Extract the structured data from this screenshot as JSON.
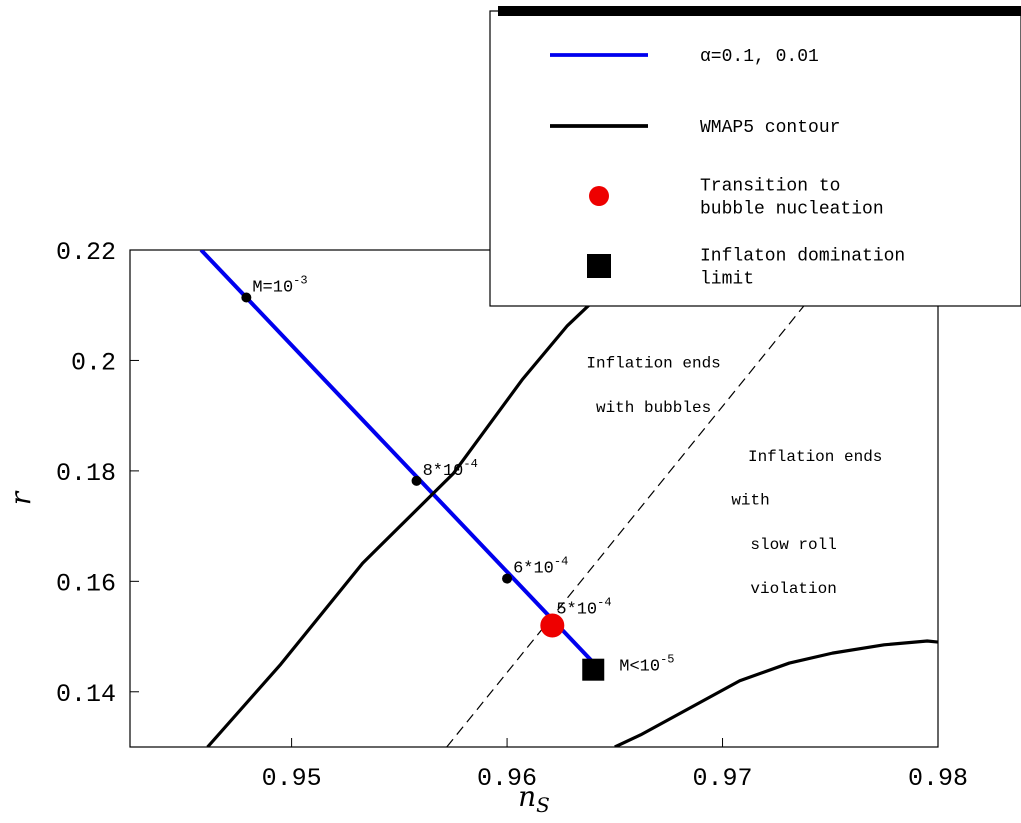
{
  "chart_data": {
    "type": "line",
    "xlabel_main": "n",
    "xlabel_sub": "S",
    "ylabel": "r",
    "xlim": [
      0.9425,
      0.98
    ],
    "ylim": [
      0.13,
      0.22
    ],
    "xticks": [
      "0.95",
      "0.96",
      "0.97",
      "0.98"
    ],
    "xtick_values": [
      0.95,
      0.96,
      0.97,
      0.98
    ],
    "yticks": [
      "0.14",
      "0.16",
      "0.18",
      "0.2",
      "0.22"
    ],
    "ytick_values": [
      0.14,
      0.16,
      0.18,
      0.2,
      0.22
    ],
    "series": [
      {
        "name": "α=0.1, 0.01",
        "color": "#0000ee",
        "x": [
          0.9458,
          0.964
        ],
        "y": [
          0.22,
          0.1453
        ]
      },
      {
        "name": "WMAP5 contour",
        "color": "#000000",
        "x": [
          0.9461,
          0.9495,
          0.9533,
          0.9575,
          0.9607,
          0.9628,
          0.9638
        ],
        "y": [
          0.13,
          0.145,
          0.1633,
          0.1795,
          0.1965,
          0.2063,
          0.21
        ]
      },
      {
        "name": "WMAP5 contour lower",
        "color": "#000000",
        "x": [
          0.965,
          0.9662,
          0.9708,
          0.9731,
          0.9751,
          0.9775,
          0.9795,
          0.98
        ],
        "y": [
          0.13,
          0.1322,
          0.142,
          0.1452,
          0.147,
          0.1485,
          0.1492,
          0.149
        ]
      },
      {
        "name": "boundary",
        "color": "#000000",
        "dashed": true,
        "x": [
          0.9572,
          0.9738
        ],
        "y": [
          0.13,
          0.21
        ]
      }
    ],
    "points": [
      {
        "x": 0.9479,
        "y": 0.2114,
        "label": "M=10",
        "exp": "-3",
        "kind": "small"
      },
      {
        "x": 0.9558,
        "y": 0.1782,
        "label": "8*10",
        "exp": "-4",
        "kind": "small"
      },
      {
        "x": 0.96,
        "y": 0.1605,
        "label": "6*10",
        "exp": "-4",
        "kind": "small"
      },
      {
        "x": 0.9621,
        "y": 0.152,
        "label": "5*10",
        "exp": "-4",
        "kind": "transition"
      },
      {
        "x": 0.964,
        "y": 0.144,
        "label": "M<10",
        "exp": "-5",
        "kind": "limit"
      }
    ],
    "annotations": [
      {
        "text": "Inflation ends",
        "x": 0.9668,
        "y": 0.1987
      },
      {
        "text": "with bubbles",
        "x": 0.9668,
        "y": 0.1907
      },
      {
        "text": "Inflation ends",
        "x": 0.9743,
        "y": 0.1818
      },
      {
        "text": "with",
        "x": 0.9713,
        "y": 0.1739
      },
      {
        "text": "slow roll",
        "x": 0.9733,
        "y": 0.1659
      },
      {
        "text": "violation",
        "x": 0.9733,
        "y": 0.1579
      }
    ],
    "legend": {
      "placement": "top-right",
      "entries": [
        {
          "kind": "line",
          "color": "#0000ee",
          "lines": [
            "α=0.1, 0.01"
          ]
        },
        {
          "kind": "line",
          "color": "#000000",
          "lines": [
            "WMAP5 contour"
          ]
        },
        {
          "kind": "circle",
          "color": "#ee0000",
          "lines": [
            "Transition to",
            "bubble nucleation"
          ]
        },
        {
          "kind": "square",
          "color": "#000000",
          "lines": [
            "Inflaton domination",
            " limit"
          ]
        }
      ]
    },
    "grid": false
  }
}
